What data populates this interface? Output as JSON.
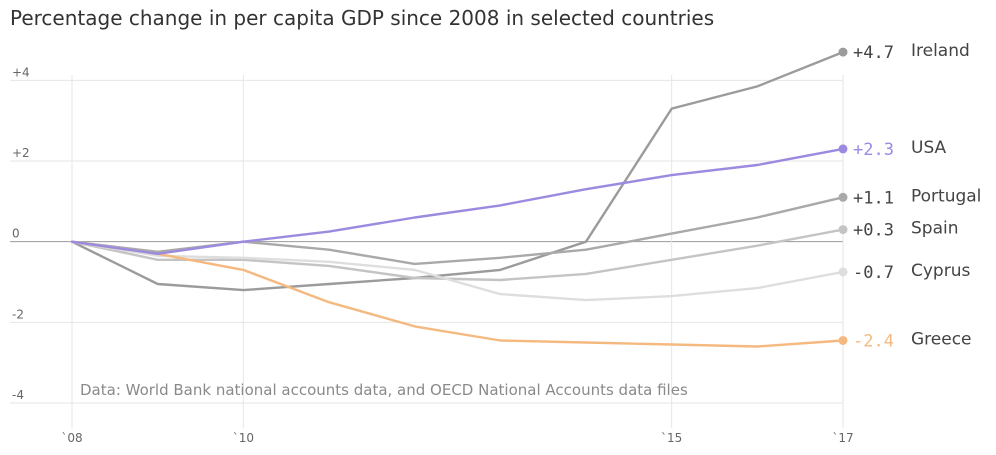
{
  "chart_data": {
    "type": "line",
    "title": "Percentage change in per capita GDP since 2008 in selected countries",
    "x": [
      2008,
      2009,
      2010,
      2011,
      2012,
      2013,
      2014,
      2015,
      2016,
      2017
    ],
    "xtick_labels": [
      {
        "x": 2008,
        "label": "`08"
      },
      {
        "x": 2010,
        "label": "`10"
      },
      {
        "x": 2015,
        "label": "`15"
      },
      {
        "x": 2017,
        "label": "`17"
      }
    ],
    "ylim": [
      -4,
      5
    ],
    "yticks": [
      4,
      2,
      0,
      -2,
      -4
    ],
    "ytick_labels": [
      "+4",
      "+2",
      "0",
      "-2",
      "-4"
    ],
    "series": [
      {
        "name": "Ireland",
        "end_label": "+4.7",
        "color": "#9b9b9b",
        "values": [
          0,
          -1.05,
          -1.2,
          -1.05,
          -0.9,
          -0.7,
          0.0,
          3.3,
          3.85,
          4.7
        ]
      },
      {
        "name": "Portugal",
        "end_label": "+1.1",
        "color": "#a9a9a9",
        "values": [
          0,
          -0.25,
          0.0,
          -0.2,
          -0.55,
          -0.4,
          -0.2,
          0.2,
          0.6,
          1.1
        ]
      },
      {
        "name": "Spain",
        "end_label": "+0.3",
        "color": "#c4c4c4",
        "values": [
          0,
          -0.45,
          -0.45,
          -0.6,
          -0.9,
          -0.95,
          -0.8,
          -0.45,
          -0.1,
          0.3
        ]
      },
      {
        "name": "Cyprus",
        "end_label": "-0.7",
        "color": "#dedede",
        "values": [
          0,
          -0.35,
          -0.4,
          -0.5,
          -0.7,
          -1.3,
          -1.45,
          -1.35,
          -1.15,
          -0.75
        ]
      },
      {
        "name": "Greece",
        "end_label": "-2.4",
        "color": "#f5b980",
        "values": [
          0,
          -0.3,
          -0.7,
          -1.5,
          -2.1,
          -2.45,
          -2.5,
          -2.55,
          -2.6,
          -2.45
        ]
      },
      {
        "name": "USA",
        "end_label": "+2.3",
        "color": "#9b8ae0",
        "values": [
          0,
          -0.3,
          0.0,
          0.25,
          0.6,
          0.9,
          1.3,
          1.65,
          1.9,
          2.3
        ]
      }
    ],
    "grid": true,
    "source": "Data: World Bank national accounts data, and OECD National Accounts data files"
  }
}
